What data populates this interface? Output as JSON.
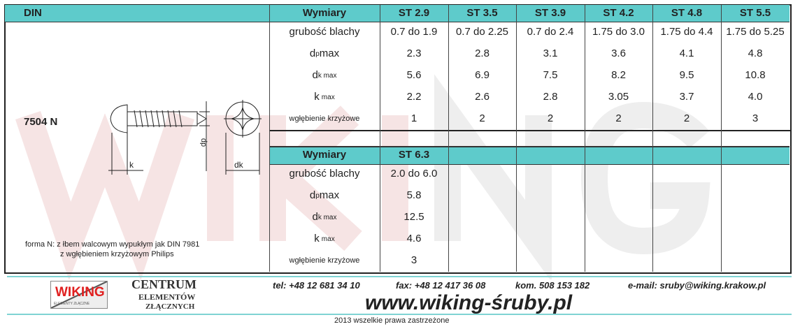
{
  "header": {
    "din": "DIN",
    "wymiary": "Wymiary"
  },
  "product": {
    "code": "7504 N",
    "description_line1": "forma N: z łbem walcowym wypukłym jak DIN 7981",
    "description_line2": "z wgłębieniem krzyżowym Philips",
    "drawing_labels": {
      "k": "k",
      "dp": "dp",
      "dk": "dk"
    }
  },
  "row_labels": {
    "grubosc": "grubość blachy",
    "dp": "d",
    "dp_sub": "p",
    "dp_suffix": " max",
    "dk": "d",
    "dk_sub": "k max",
    "k": "k",
    "k_sub": "max",
    "wglebienie": "wgłębienie krzyżowe"
  },
  "table1": {
    "columns": [
      "ST 2.9",
      "ST 3.5",
      "ST 3.9",
      "ST 4.2",
      "ST 4.8",
      "ST 5.5"
    ],
    "rows": [
      [
        "0.7 do 1.9",
        "0.7 do 2.25",
        "0.7 do 2.4",
        "1.75 do 3.0",
        "1.75 do 4.4",
        "1.75 do 5.25"
      ],
      [
        "2.3",
        "2.8",
        "3.1",
        "3.6",
        "4.1",
        "4.8"
      ],
      [
        "5.6",
        "6.9",
        "7.5",
        "8.2",
        "9.5",
        "10.8"
      ],
      [
        "2.2",
        "2.6",
        "2.8",
        "3.05",
        "3.7",
        "4.0"
      ],
      [
        "1",
        "2",
        "2",
        "2",
        "2",
        "3"
      ]
    ]
  },
  "table2": {
    "columns": [
      "ST 6.3"
    ],
    "rows": [
      [
        "2.0 do 6.0"
      ],
      [
        "5.8"
      ],
      [
        "12.5"
      ],
      [
        "4.6"
      ],
      [
        "3"
      ]
    ]
  },
  "footer": {
    "logo": "WIKING",
    "logo_sub": "ELEMENTY ZŁĄCZNE",
    "centrum1": "CENTRUM",
    "centrum2": "ELEMENTÓW",
    "centrum3": "ZŁĄCZNYCH",
    "tel": "tel: +48 12 681 34 10",
    "fax": "fax: +48 12 417 36 08",
    "kom": "kom. 508 153 182",
    "email": "e-mail: sruby@wiking.krakow.pl",
    "website": "www.wiking-śruby.pl",
    "copyright": "2013 wszelkie prawa zastrzeżone"
  },
  "watermark": "WIKING",
  "colors": {
    "header": "#5ecbcb",
    "footer_line": "#7fd3d3",
    "logo_red": "#e02020"
  }
}
